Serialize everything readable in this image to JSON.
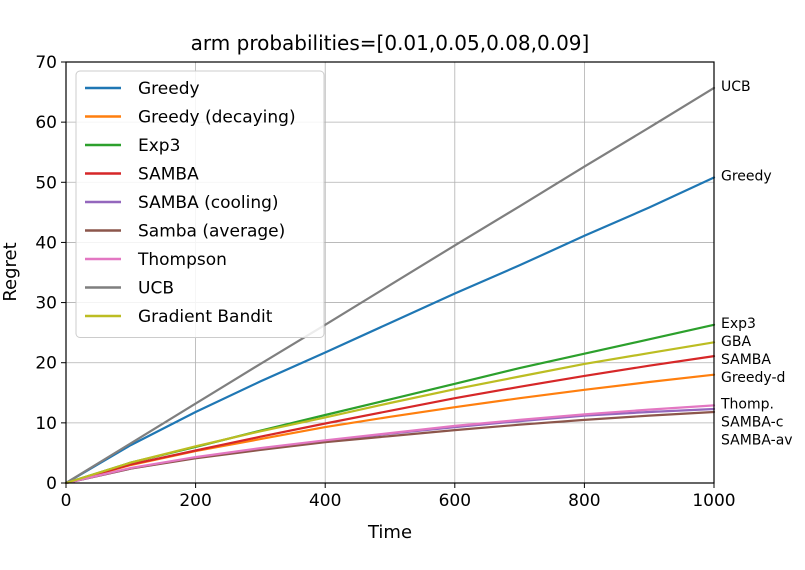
{
  "chart_data": {
    "type": "line",
    "title": "arm probabilities=[0.01,0.05,0.08,0.09]",
    "xlabel": "Time",
    "ylabel": "Regret",
    "xlim": [
      0,
      1000
    ],
    "ylim": [
      0,
      70
    ],
    "xticks": [
      0,
      200,
      400,
      600,
      800,
      1000
    ],
    "yticks": [
      0,
      10,
      20,
      30,
      40,
      50,
      60,
      70
    ],
    "grid": true,
    "legend_position": "top-left",
    "x": [
      0,
      100,
      200,
      300,
      400,
      500,
      600,
      700,
      800,
      900,
      1000
    ],
    "series": [
      {
        "name": "Greedy",
        "color": "#1f77b4",
        "end_label": "Greedy",
        "values": [
          0,
          6.3,
          11.8,
          16.9,
          21.7,
          26.6,
          31.5,
          36.2,
          41.1,
          45.8,
          50.8
        ]
      },
      {
        "name": "Greedy (decaying)",
        "color": "#ff7f0e",
        "end_label": "Greedy-d",
        "values": [
          0,
          3.0,
          5.3,
          7.3,
          9.3,
          11.0,
          12.6,
          14.1,
          15.5,
          16.8,
          18.0
        ]
      },
      {
        "name": "Exp3",
        "color": "#2ca02c",
        "end_label": "Exp3",
        "values": [
          0,
          3.4,
          6.0,
          8.7,
          11.3,
          13.9,
          16.5,
          19.1,
          21.5,
          23.9,
          26.3
        ]
      },
      {
        "name": "SAMBA",
        "color": "#d62728",
        "end_label": "SAMBA",
        "values": [
          0,
          3.1,
          5.4,
          7.7,
          9.9,
          12.0,
          14.1,
          16.0,
          17.8,
          19.5,
          21.1
        ]
      },
      {
        "name": "SAMBA (cooling)",
        "color": "#9467bd",
        "end_label": "SAMBA-c",
        "values": [
          0,
          2.4,
          4.2,
          5.7,
          7.0,
          8.2,
          9.3,
          10.3,
          11.2,
          11.8,
          12.3
        ]
      },
      {
        "name": "Samba (average)",
        "color": "#8c564b",
        "end_label": "SAMBA-av",
        "values": [
          0,
          2.4,
          4.1,
          5.5,
          6.8,
          7.8,
          8.8,
          9.7,
          10.5,
          11.2,
          11.8
        ]
      },
      {
        "name": "Thompson",
        "color": "#e377c2",
        "end_label": "Thomp.",
        "values": [
          0,
          2.5,
          4.3,
          5.8,
          7.1,
          8.3,
          9.5,
          10.5,
          11.4,
          12.2,
          12.9
        ]
      },
      {
        "name": "UCB",
        "color": "#7f7f7f",
        "end_label": "UCB",
        "values": [
          0,
          6.6,
          13.2,
          19.8,
          26.3,
          32.9,
          39.5,
          46.0,
          52.6,
          59.1,
          65.7
        ]
      },
      {
        "name": "Gradient Bandit",
        "color": "#bcbd22",
        "end_label": "GBA",
        "values": [
          0,
          3.4,
          6.1,
          8.6,
          10.9,
          13.3,
          15.6,
          17.7,
          19.8,
          21.6,
          23.4
        ]
      }
    ]
  }
}
